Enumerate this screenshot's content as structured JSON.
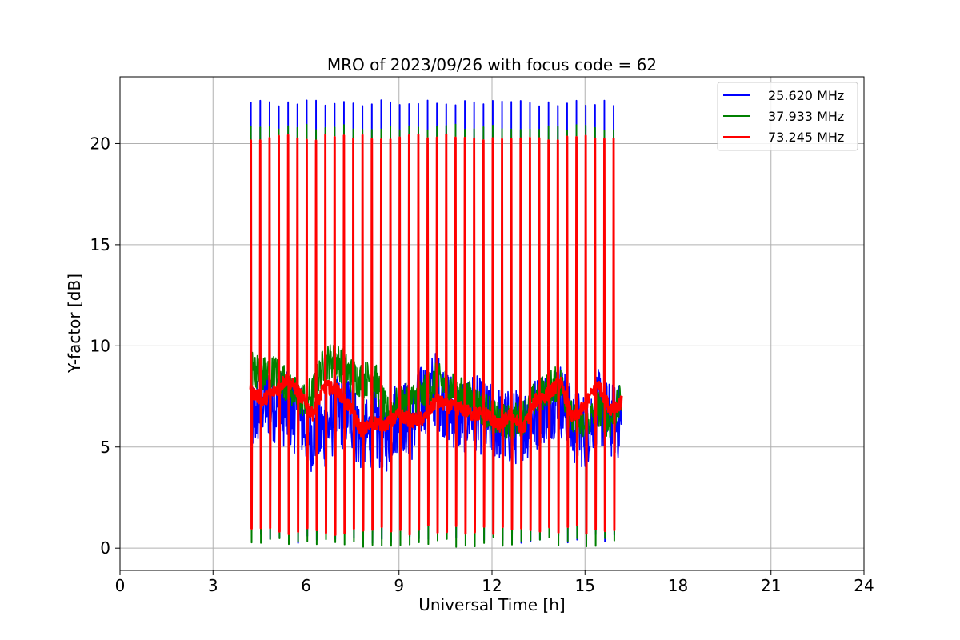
{
  "chart_data": {
    "type": "line",
    "title": "MRO of 2023/09/26 with focus code = 62",
    "xlabel": "Universal Time [h]",
    "ylabel": "Y-factor [dB]",
    "xlim": [
      0,
      24
    ],
    "ylim": [
      -1.1,
      23.3
    ],
    "xticks": [
      0,
      3,
      6,
      9,
      12,
      15,
      18,
      21,
      24
    ],
    "yticks": [
      0,
      5,
      10,
      15,
      20
    ],
    "grid": true,
    "legend_position": "top-right",
    "data_range_x": [
      4.2,
      16.2
    ],
    "calibration_cycle_times": [
      4.22,
      4.52,
      4.82,
      5.12,
      5.42,
      5.72,
      6.02,
      6.32,
      6.62,
      6.92,
      7.22,
      7.52,
      7.82,
      8.12,
      8.42,
      8.72,
      9.02,
      9.32,
      9.62,
      9.92,
      10.22,
      10.52,
      10.82,
      11.12,
      11.42,
      11.72,
      12.02,
      12.32,
      12.62,
      12.92,
      13.22,
      13.52,
      13.82,
      14.12,
      14.42,
      14.72,
      15.02,
      15.32,
      15.62,
      15.92
    ],
    "series": [
      {
        "name": "25.620 MHz",
        "color": "#0000ff",
        "calibration_peak": 22.0,
        "calibration_floor": 0.5,
        "baseline_x": [
          4.2,
          4.6,
          5.0,
          5.4,
          5.8,
          6.2,
          6.6,
          7.0,
          7.4,
          7.8,
          8.2,
          8.6,
          9.0,
          9.4,
          9.8,
          10.2,
          10.6,
          11.0,
          11.4,
          11.8,
          12.2,
          12.6,
          13.0,
          13.4,
          13.8,
          14.2,
          14.6,
          15.0,
          15.4,
          15.8,
          16.2
        ],
        "baseline_y": [
          6.2,
          7.3,
          7.1,
          6.8,
          6.4,
          5.6,
          5.8,
          6.6,
          6.9,
          5.3,
          5.9,
          5.6,
          6.8,
          6.1,
          7.5,
          7.9,
          7.0,
          6.5,
          6.8,
          6.3,
          6.2,
          5.9,
          6.1,
          6.6,
          7.2,
          7.4,
          6.0,
          5.8,
          7.0,
          6.3,
          6.2
        ],
        "spread": 1.9
      },
      {
        "name": "37.933 MHz",
        "color": "#008000",
        "calibration_peak": 20.8,
        "calibration_floor": 0.3,
        "baseline_x": [
          4.2,
          4.6,
          5.0,
          5.4,
          5.8,
          6.2,
          6.6,
          7.0,
          7.4,
          7.8,
          8.2,
          8.6,
          9.0,
          9.4,
          9.8,
          10.2,
          10.6,
          11.0,
          11.4,
          11.8,
          12.2,
          12.6,
          13.0,
          13.4,
          13.8,
          14.2,
          14.6,
          15.0,
          15.4,
          15.8,
          16.2
        ],
        "baseline_y": [
          9.0,
          8.6,
          8.7,
          8.1,
          7.3,
          7.6,
          9.2,
          9.3,
          8.6,
          8.3,
          8.5,
          6.6,
          7.2,
          7.3,
          7.6,
          8.3,
          8.0,
          7.6,
          7.3,
          6.8,
          6.3,
          6.2,
          6.5,
          7.4,
          7.9,
          8.2,
          6.3,
          5.9,
          7.0,
          6.2,
          7.4
        ],
        "spread": 0.9
      },
      {
        "name": "73.245 MHz",
        "color": "#ff0000",
        "calibration_peak": 20.3,
        "calibration_floor": 0.9,
        "baseline_x": [
          4.2,
          4.6,
          5.0,
          5.4,
          5.8,
          6.2,
          6.6,
          7.0,
          7.4,
          7.8,
          8.2,
          8.6,
          9.0,
          9.4,
          9.8,
          10.2,
          10.6,
          11.0,
          11.4,
          11.8,
          12.2,
          12.6,
          13.0,
          13.4,
          13.8,
          14.2,
          14.6,
          15.0,
          15.4,
          15.8,
          16.2
        ],
        "baseline_y": [
          7.8,
          7.3,
          7.8,
          8.4,
          7.6,
          6.6,
          8.0,
          7.8,
          7.0,
          5.8,
          6.2,
          6.1,
          6.6,
          6.3,
          6.4,
          7.3,
          7.0,
          6.9,
          6.6,
          6.7,
          6.0,
          6.6,
          5.9,
          7.3,
          7.6,
          8.2,
          6.4,
          7.0,
          8.2,
          6.9,
          7.2
        ],
        "spread": 0.35
      }
    ]
  }
}
